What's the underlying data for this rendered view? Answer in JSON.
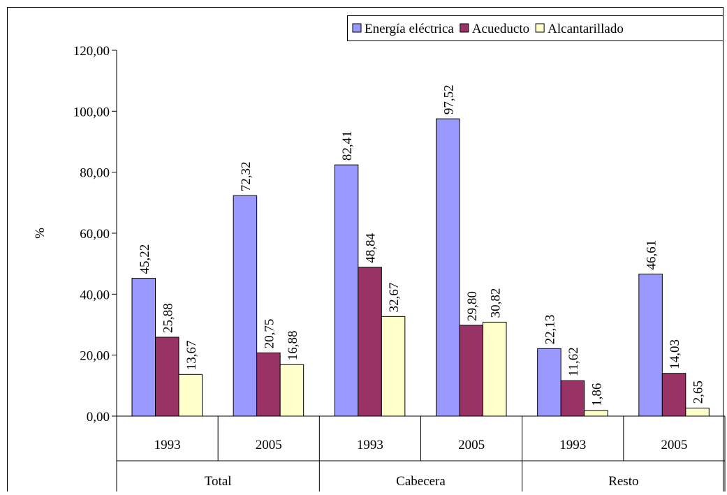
{
  "chart_data": {
    "type": "bar",
    "categories": [
      "1993",
      "2005",
      "1993",
      "2005",
      "1993",
      "2005"
    ],
    "groups": [
      "Total",
      "Cabecera",
      "Resto"
    ],
    "y_label": "%",
    "ylim": [
      0,
      120
    ],
    "yticks": [
      {
        "value": 0,
        "label": "0,00"
      },
      {
        "value": 20,
        "label": "20,00"
      },
      {
        "value": 40,
        "label": "40,00"
      },
      {
        "value": 60,
        "label": "60,00"
      },
      {
        "value": 80,
        "label": "80,00"
      },
      {
        "value": 100,
        "label": "100,00"
      },
      {
        "value": 120,
        "label": "120,00"
      }
    ],
    "legend": "top-right",
    "series": [
      {
        "name": "Energía eléctrica",
        "color": "#9999ff",
        "values": [
          45.22,
          72.32,
          82.41,
          97.52,
          22.13,
          46.61
        ],
        "value_labels": [
          "45,22",
          "72,32",
          "82,41",
          "97,52",
          "22,13",
          "46,61"
        ]
      },
      {
        "name": "Acueducto",
        "color": "#993366",
        "values": [
          25.88,
          20.75,
          48.84,
          29.8,
          11.62,
          14.03
        ],
        "value_labels": [
          "25,88",
          "20,75",
          "48,84",
          "29,80",
          "11,62",
          "14,03"
        ]
      },
      {
        "name": "Alcantarillado",
        "color": "#ffffcc",
        "values": [
          13.67,
          16.88,
          32.67,
          30.82,
          1.86,
          2.65
        ],
        "value_labels": [
          "13,67",
          "16,88",
          "32,67",
          "30,82",
          "1,86",
          "2,65"
        ]
      }
    ]
  }
}
